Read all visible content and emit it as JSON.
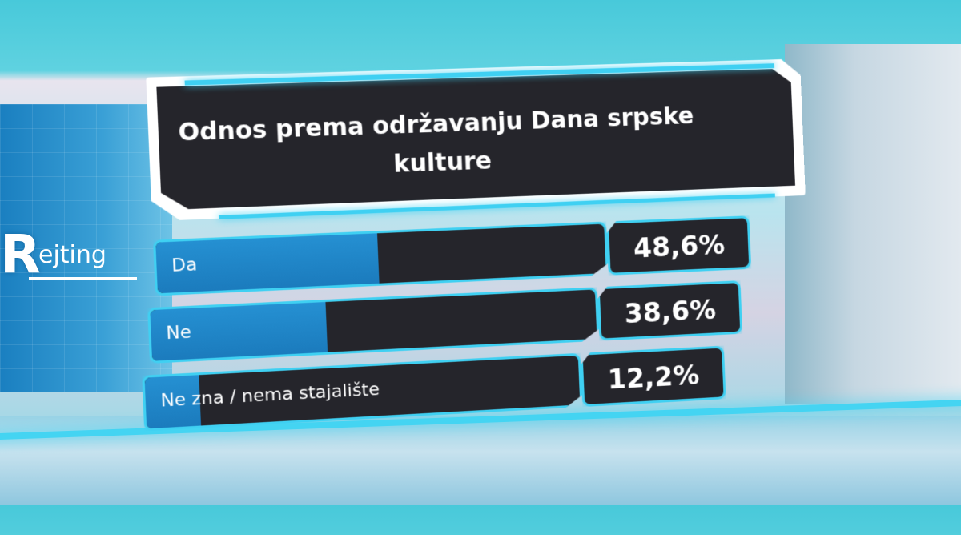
{
  "brand": {
    "initial": "R",
    "rest": "ejting"
  },
  "chart_data": {
    "type": "bar",
    "title": "Odnos prema održavanju Dana srpske kulture",
    "categories": [
      "Da",
      "Ne",
      "Ne zna / nema stajalište"
    ],
    "values": [
      48.6,
      38.6,
      12.2
    ],
    "value_labels": [
      "48,6%",
      "38,6%",
      "12,2%"
    ],
    "unit": "%",
    "ylim": [
      0,
      100
    ]
  },
  "colors": {
    "accent_glow": "#3fd0f2",
    "bar_fill": "#1b7bbd",
    "panel": "#25252b"
  }
}
